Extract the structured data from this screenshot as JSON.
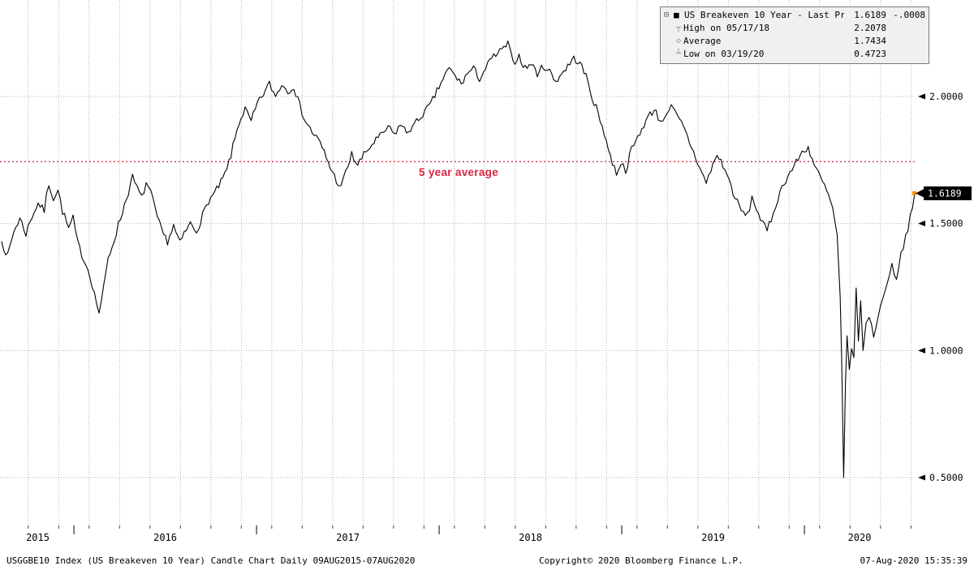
{
  "colors": {
    "series": "#000000",
    "grid": "#b3b3b3",
    "accent_red": "#da2440",
    "last_price_bg": "#000000",
    "last_price_fg": "#ffffff",
    "end_marker": "#ff8c00",
    "legend_bg": "#f0f0f0"
  },
  "legend": {
    "rows": [
      {
        "icon": "candle-series-swatch",
        "label": "US Breakeven 10 Year - Last Price",
        "value": "1.6189",
        "change": "-.0008"
      },
      {
        "icon": "high-marker",
        "label": "High on 05/17/18",
        "value": "2.2078",
        "change": ""
      },
      {
        "icon": "average-marker",
        "label": "Average",
        "value": "1.7434",
        "change": ""
      },
      {
        "icon": "low-marker",
        "label": "Low on 03/19/20",
        "value": "0.4723",
        "change": ""
      }
    ]
  },
  "footer": {
    "left": "USGGBE10 Index (US Breakeven 10 Year) Candle Chart  Daily 09AUG2015-07AUG2020",
    "center": "Copyright© 2020 Bloomberg Finance L.P.",
    "right": "07-Aug-2020 15:35:39"
  },
  "chart_data": {
    "type": "line",
    "title": "US Breakeven 10 Year - Last Price",
    "subtitle": "Candle Chart Daily 09AUG2015-07AUG2020",
    "xlabel": "",
    "ylabel": "",
    "grid": "dotted",
    "legend_position": "top-right",
    "last_price": 1.6189,
    "last_price_label": "1.6189",
    "change": -0.0008,
    "high": {
      "date": "05/17/18",
      "value": 2.2078
    },
    "average": 1.7434,
    "low": {
      "date": "03/19/20",
      "value": 0.4723
    },
    "avg_line": {
      "value": 1.7434,
      "label": "5 year average"
    },
    "y_ticks": [
      2.0,
      1.5,
      1.0,
      0.5
    ],
    "y_tick_labels": [
      "2.0000",
      "1.5000",
      "1.0000",
      "0.5000"
    ],
    "ylim_visible": [
      0.31,
      2.38
    ],
    "x_year_labels": [
      "2015",
      "2016",
      "2017",
      "2018",
      "2019",
      "2020"
    ],
    "x_year_boundaries_months": [
      0,
      4.75,
      16.75,
      28.75,
      40.75,
      52.75,
      60
    ],
    "x_range_months": [
      0,
      60
    ],
    "series": [
      {
        "name": "US Breakeven 10 Year - Last Price",
        "units": "percent",
        "points": [
          [
            0,
            1.43
          ],
          [
            0.4,
            1.37
          ],
          [
            0.8,
            1.47
          ],
          [
            1.2,
            1.52
          ],
          [
            1.6,
            1.46
          ],
          [
            2,
            1.53
          ],
          [
            2.4,
            1.58
          ],
          [
            2.8,
            1.55
          ],
          [
            3.1,
            1.66
          ],
          [
            3.4,
            1.6
          ],
          [
            3.7,
            1.63
          ],
          [
            4,
            1.55
          ],
          [
            4.4,
            1.48
          ],
          [
            4.7,
            1.52
          ],
          [
            5,
            1.42
          ],
          [
            5.4,
            1.36
          ],
          [
            5.8,
            1.3
          ],
          [
            6.1,
            1.22
          ],
          [
            6.4,
            1.15
          ],
          [
            6.7,
            1.24
          ],
          [
            7,
            1.36
          ],
          [
            7.4,
            1.44
          ],
          [
            7.8,
            1.52
          ],
          [
            8.2,
            1.6
          ],
          [
            8.6,
            1.68
          ],
          [
            8.9,
            1.64
          ],
          [
            9.2,
            1.6
          ],
          [
            9.5,
            1.66
          ],
          [
            9.8,
            1.62
          ],
          [
            10.1,
            1.55
          ],
          [
            10.5,
            1.47
          ],
          [
            10.9,
            1.43
          ],
          [
            11.3,
            1.49
          ],
          [
            11.7,
            1.42
          ],
          [
            12,
            1.46
          ],
          [
            12.4,
            1.5
          ],
          [
            12.8,
            1.47
          ],
          [
            13.2,
            1.53
          ],
          [
            13.6,
            1.59
          ],
          [
            14,
            1.62
          ],
          [
            14.4,
            1.66
          ],
          [
            14.8,
            1.71
          ],
          [
            15.2,
            1.8
          ],
          [
            15.6,
            1.9
          ],
          [
            16,
            1.95
          ],
          [
            16.4,
            1.9
          ],
          [
            16.8,
            1.97
          ],
          [
            17.2,
            2.01
          ],
          [
            17.6,
            2.05
          ],
          [
            18,
            2.0
          ],
          [
            18.4,
            2.05
          ],
          [
            18.8,
            2.02
          ],
          [
            19.2,
            2.04
          ],
          [
            19.6,
            1.96
          ],
          [
            20,
            1.9
          ],
          [
            20.4,
            1.86
          ],
          [
            20.8,
            1.83
          ],
          [
            21.2,
            1.78
          ],
          [
            21.6,
            1.72
          ],
          [
            22,
            1.67
          ],
          [
            22.3,
            1.64
          ],
          [
            22.6,
            1.7
          ],
          [
            23,
            1.77
          ],
          [
            23.4,
            1.73
          ],
          [
            23.8,
            1.77
          ],
          [
            24.2,
            1.8
          ],
          [
            24.6,
            1.83
          ],
          [
            25,
            1.85
          ],
          [
            25.4,
            1.88
          ],
          [
            25.8,
            1.85
          ],
          [
            26.2,
            1.89
          ],
          [
            26.6,
            1.86
          ],
          [
            27,
            1.88
          ],
          [
            27.4,
            1.91
          ],
          [
            27.8,
            1.94
          ],
          [
            28.2,
            1.97
          ],
          [
            28.6,
            2.02
          ],
          [
            29,
            2.07
          ],
          [
            29.4,
            2.11
          ],
          [
            29.8,
            2.08
          ],
          [
            30.2,
            2.05
          ],
          [
            30.6,
            2.09
          ],
          [
            31,
            2.11
          ],
          [
            31.4,
            2.07
          ],
          [
            31.8,
            2.11
          ],
          [
            32.2,
            2.15
          ],
          [
            32.6,
            2.17
          ],
          [
            33,
            2.19
          ],
          [
            33.27,
            2.2078
          ],
          [
            33.6,
            2.13
          ],
          [
            34,
            2.16
          ],
          [
            34.4,
            2.11
          ],
          [
            34.8,
            2.13
          ],
          [
            35.2,
            2.09
          ],
          [
            35.6,
            2.12
          ],
          [
            36,
            2.1
          ],
          [
            36.4,
            2.06
          ],
          [
            36.8,
            2.09
          ],
          [
            37.2,
            2.12
          ],
          [
            37.6,
            2.15
          ],
          [
            38,
            2.13
          ],
          [
            38.4,
            2.08
          ],
          [
            38.8,
            2.0
          ],
          [
            39.2,
            1.93
          ],
          [
            39.6,
            1.86
          ],
          [
            40,
            1.76
          ],
          [
            40.4,
            1.7
          ],
          [
            40.7,
            1.74
          ],
          [
            41,
            1.71
          ],
          [
            41.4,
            1.79
          ],
          [
            41.8,
            1.84
          ],
          [
            42.2,
            1.89
          ],
          [
            42.6,
            1.93
          ],
          [
            43,
            1.95
          ],
          [
            43.3,
            1.89
          ],
          [
            43.6,
            1.93
          ],
          [
            44,
            1.96
          ],
          [
            44.4,
            1.92
          ],
          [
            44.8,
            1.88
          ],
          [
            45.2,
            1.82
          ],
          [
            45.6,
            1.76
          ],
          [
            46,
            1.7
          ],
          [
            46.3,
            1.66
          ],
          [
            46.6,
            1.71
          ],
          [
            47,
            1.77
          ],
          [
            47.4,
            1.73
          ],
          [
            47.8,
            1.67
          ],
          [
            48.2,
            1.6
          ],
          [
            48.6,
            1.55
          ],
          [
            49,
            1.53
          ],
          [
            49.3,
            1.6
          ],
          [
            49.6,
            1.56
          ],
          [
            50,
            1.5
          ],
          [
            50.3,
            1.47
          ],
          [
            50.7,
            1.54
          ],
          [
            51,
            1.6
          ],
          [
            51.4,
            1.66
          ],
          [
            51.8,
            1.7
          ],
          [
            52.2,
            1.74
          ],
          [
            52.6,
            1.78
          ],
          [
            53,
            1.8
          ],
          [
            53.4,
            1.73
          ],
          [
            53.8,
            1.68
          ],
          [
            54.2,
            1.63
          ],
          [
            54.6,
            1.56
          ],
          [
            54.9,
            1.45
          ],
          [
            55.1,
            1.2
          ],
          [
            55.2,
            0.95
          ],
          [
            55.33,
            0.4723
          ],
          [
            55.45,
            0.85
          ],
          [
            55.55,
            1.05
          ],
          [
            55.7,
            0.92
          ],
          [
            55.85,
            1.02
          ],
          [
            56,
            0.98
          ],
          [
            56.15,
            1.22
          ],
          [
            56.3,
            1.05
          ],
          [
            56.45,
            1.18
          ],
          [
            56.6,
            1.02
          ],
          [
            56.8,
            1.1
          ],
          [
            57,
            1.13
          ],
          [
            57.3,
            1.06
          ],
          [
            57.6,
            1.14
          ],
          [
            57.9,
            1.2
          ],
          [
            58.2,
            1.28
          ],
          [
            58.5,
            1.33
          ],
          [
            58.8,
            1.29
          ],
          [
            59.1,
            1.38
          ],
          [
            59.4,
            1.45
          ],
          [
            59.7,
            1.52
          ],
          [
            59.85,
            1.56
          ],
          [
            60,
            1.6189
          ]
        ]
      }
    ]
  }
}
